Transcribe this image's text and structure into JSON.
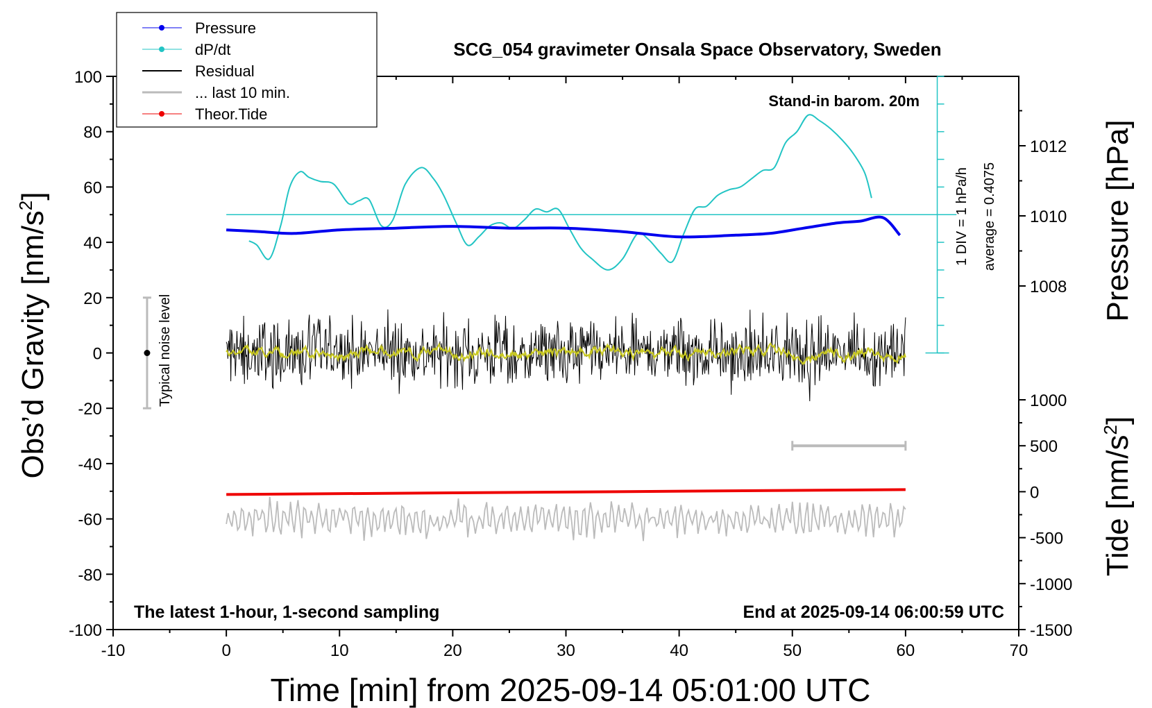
{
  "chart_data": {
    "type": "line",
    "title": "SCG_054 gravimeter Onsala Space Observatory, Sweden",
    "xlabel": "Time [min] from 2025-09-14 05:01:00 UTC",
    "ylabel_prefix": "Obs’d Gravity [nm/s",
    "ylabel_sup": "2",
    "ylabel_suffix": "]",
    "right_top_label": "Pressure [hPa]",
    "right_bottom_prefix": "Tide [nm/s",
    "right_bottom_sup": "2",
    "right_bottom_suffix": "]",
    "xlim": [
      -10,
      70
    ],
    "ylim": [
      -100,
      100
    ],
    "x_ticks": [
      "-10",
      "0",
      "10",
      "20",
      "30",
      "40",
      "50",
      "60",
      "70"
    ],
    "y_ticks": [
      "100",
      "80",
      "60",
      "40",
      "20",
      "0",
      "-20",
      "-40",
      "-60",
      "-80",
      "-100"
    ],
    "pressure_ticks": [
      "1012",
      "1010",
      "1008"
    ],
    "tide_ticks": [
      "1000",
      "500",
      "0",
      "-500",
      "-1000",
      "-1500"
    ],
    "legend": {
      "placement": "top-left",
      "entries": [
        "Pressure",
        "dP/dt",
        "Residual",
        "... last 10 min.",
        "Theor.Tide"
      ]
    },
    "annotations": {
      "barometer": "Stand-in barom. 20m",
      "scale_div": "1 DIV = 1 hPa/h",
      "average": "average = 0.4075",
      "noise": "Typical noise level",
      "footer_left": "The latest 1-hour, 1-second sampling",
      "footer_right": "End at 2025-09-14 06:00:59 UTC"
    },
    "colors": {
      "pressure": "#0000ee",
      "dpdt": "#22c4c4",
      "residual": "#000000",
      "residual_smooth": "#c8c820",
      "last10": "#bbbbbb",
      "tide": "#ee0000"
    },
    "series": [
      {
        "name": "Pressure",
        "unit": "hPa",
        "x": [
          0,
          3,
          6,
          10,
          15,
          20,
          25,
          30,
          35,
          40,
          45,
          48,
          51,
          54,
          56,
          58,
          59.5
        ],
        "values": [
          1009.6,
          1009.55,
          1009.5,
          1009.6,
          1009.65,
          1009.7,
          1009.65,
          1009.65,
          1009.55,
          1009.4,
          1009.45,
          1009.5,
          1009.65,
          1009.8,
          1009.85,
          1009.95,
          1009.45
        ]
      },
      {
        "name": "dP/dt",
        "unit": "nm/s2 axis",
        "x": [
          2,
          2.7,
          3.8,
          4.8,
          5.6,
          6.5,
          7.3,
          8.3,
          9.5,
          10.8,
          11.7,
          12.6,
          13.7,
          14.7,
          15.8,
          17.2,
          18.3,
          19.2,
          20.3,
          21.3,
          22.3,
          23.3,
          24.3,
          25.3,
          26.3,
          27.3,
          28.3,
          29.3,
          30.3,
          31.3,
          32.3,
          33.7,
          35.0,
          36.3,
          37.3,
          38.4,
          39.4,
          40.4,
          41.4,
          42.4,
          43.4,
          44.4,
          45.4,
          46.4,
          47.4,
          48.4,
          49.4,
          50.4,
          51.4,
          52.4,
          53.4,
          54.4,
          55.4,
          56.4,
          57.0
        ],
        "values": [
          40.5,
          39,
          34,
          46,
          60,
          65.5,
          63.5,
          62,
          61,
          54,
          55,
          55.5,
          46,
          48,
          61,
          67,
          63,
          57,
          47,
          39,
          42,
          46,
          47,
          45,
          48,
          52,
          51,
          52,
          45,
          38,
          34,
          30,
          34,
          43,
          41,
          36,
          33,
          43,
          52,
          53,
          57,
          59,
          60,
          63,
          66,
          67,
          76,
          80,
          86,
          84,
          81,
          77,
          72,
          65,
          56
        ]
      },
      {
        "name": "Residual",
        "unit": "nm/s2",
        "x": [
          0,
          60
        ],
        "values": [
          0,
          0
        ],
        "noise_amplitude": 6
      },
      {
        "name": "... last 10 min.",
        "unit": "nm/s2",
        "x": [
          0,
          60
        ],
        "values": [
          -60,
          -60
        ],
        "noise_amplitude": 5
      },
      {
        "name": "Theor.Tide",
        "unit": "nm/s2",
        "x": [
          0,
          60
        ],
        "values": [
          -30,
          23
        ]
      }
    ],
    "noise_bar": {
      "x": -7,
      "center": 0,
      "low": -20,
      "high": 20
    },
    "span_bar": {
      "x": [
        50,
        60
      ],
      "tide_value": 500
    }
  }
}
